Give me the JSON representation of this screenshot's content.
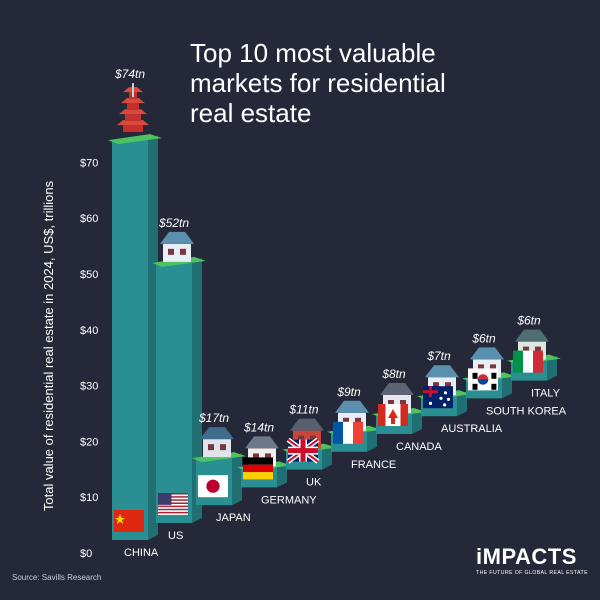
{
  "title_lines": [
    "Top 10 most valuable",
    "markets for residential",
    "real estate"
  ],
  "source": "Source: Savills Research",
  "brand": {
    "name": "iMPACTS",
    "tagline": "THE FUTURE OF GLOBAL REAL ESTATE"
  },
  "colors": {
    "background": "#252838",
    "bar_front": "#2a8f92",
    "bar_side": "#1f6f73",
    "platform_top": "#4cc260",
    "platform_side": "#2e8a3c",
    "text": "#ffffff"
  },
  "chart_data": {
    "type": "bar",
    "title": "Top 10 most valuable markets for residential real estate",
    "ylabel": "Total value of residential real estate in 2024, US$, trillions",
    "ylim": [
      0,
      80
    ],
    "yticks": [
      "$0",
      "$10",
      "$20",
      "$30",
      "$40",
      "$50",
      "$60",
      "$70"
    ],
    "categories": [
      "CHINA",
      "US",
      "JAPAN",
      "GERMANY",
      "UK",
      "FRANCE",
      "CANADA",
      "AUSTRALIA",
      "SOUTH KOREA",
      "ITALY"
    ],
    "values": [
      74,
      52,
      17,
      14,
      11,
      9,
      8,
      7,
      6,
      6
    ],
    "value_labels": [
      "$74tn",
      "$52tn",
      "$17tn",
      "$14tn",
      "$11tn",
      "$9tn",
      "$8tn",
      "$7tn",
      "$6tn",
      "$6tn"
    ],
    "flag_icons": [
      "china-flag-icon",
      "us-flag-icon",
      "japan-flag-icon",
      "germany-flag-icon",
      "uk-flag-icon",
      "france-flag-icon",
      "canada-flag-icon",
      "australia-flag-icon",
      "south-korea-flag-icon",
      "italy-flag-icon"
    ],
    "house_icons": [
      "pagoda-icon",
      "house-icon",
      "apartment-icon",
      "timber-house-icon",
      "brick-house-icon",
      "house-icon",
      "cottage-icon",
      "house-icon",
      "house-icon",
      "villa-icon"
    ],
    "grid": false,
    "legend": "none"
  }
}
